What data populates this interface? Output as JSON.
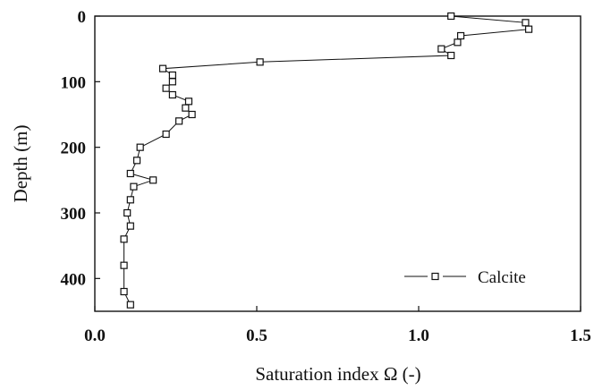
{
  "chart_data": {
    "type": "line",
    "xlabel": "Saturation index Ω (-)",
    "ylabel": "Depth (m)",
    "xlim": [
      0.0,
      1.5
    ],
    "ylim": [
      0,
      450
    ],
    "y_inverted": true,
    "x_ticks": [
      "0.0",
      "0.5",
      "1.0",
      "1.5"
    ],
    "x_tick_values": [
      0.0,
      0.5,
      1.0,
      1.5
    ],
    "y_ticks": [
      "0",
      "100",
      "200",
      "300",
      "400"
    ],
    "y_tick_values": [
      0,
      100,
      200,
      300,
      400
    ],
    "grid": false,
    "legend": {
      "position": "bottom-right",
      "entries": [
        "Calcite"
      ]
    },
    "series": [
      {
        "name": "Calcite",
        "marker": "open-square",
        "color": "#111111",
        "points": [
          {
            "x": 1.1,
            "y": 0
          },
          {
            "x": 1.33,
            "y": 10
          },
          {
            "x": 1.34,
            "y": 20
          },
          {
            "x": 1.13,
            "y": 30
          },
          {
            "x": 1.12,
            "y": 40
          },
          {
            "x": 1.07,
            "y": 50
          },
          {
            "x": 1.1,
            "y": 60
          },
          {
            "x": 0.51,
            "y": 70
          },
          {
            "x": 0.21,
            "y": 80
          },
          {
            "x": 0.24,
            "y": 90
          },
          {
            "x": 0.24,
            "y": 100
          },
          {
            "x": 0.22,
            "y": 110
          },
          {
            "x": 0.24,
            "y": 120
          },
          {
            "x": 0.29,
            "y": 130
          },
          {
            "x": 0.28,
            "y": 140
          },
          {
            "x": 0.3,
            "y": 150
          },
          {
            "x": 0.26,
            "y": 160
          },
          {
            "x": 0.22,
            "y": 180
          },
          {
            "x": 0.14,
            "y": 200
          },
          {
            "x": 0.13,
            "y": 220
          },
          {
            "x": 0.11,
            "y": 240
          },
          {
            "x": 0.18,
            "y": 250
          },
          {
            "x": 0.12,
            "y": 260
          },
          {
            "x": 0.11,
            "y": 280
          },
          {
            "x": 0.1,
            "y": 300
          },
          {
            "x": 0.11,
            "y": 320
          },
          {
            "x": 0.09,
            "y": 340
          },
          {
            "x": 0.09,
            "y": 380
          },
          {
            "x": 0.09,
            "y": 420
          },
          {
            "x": 0.11,
            "y": 440
          }
        ]
      }
    ]
  }
}
